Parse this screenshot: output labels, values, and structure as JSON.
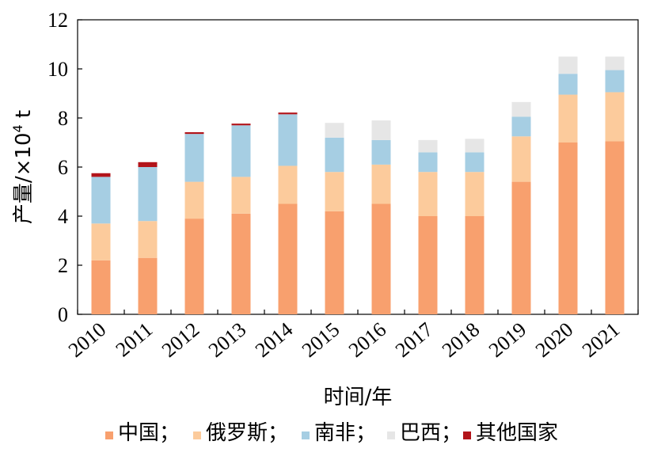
{
  "chart_data": {
    "type": "bar",
    "stacked": true,
    "title": "",
    "xlabel": "时间/年",
    "ylabel_main": "产量/×10",
    "ylabel_exp": "4",
    "ylabel_unit": " t",
    "ylim": [
      0,
      12
    ],
    "yticks": [
      "0",
      "2",
      "4",
      "6",
      "8",
      "10",
      "12"
    ],
    "categories": [
      "2010",
      "2011",
      "2012",
      "2013",
      "2014",
      "2015",
      "2016",
      "2017",
      "2018",
      "2019",
      "2020",
      "2021"
    ],
    "series": [
      {
        "name": "中国",
        "legend_label": "中国；",
        "color": "#F8A06E",
        "values": [
          2.2,
          2.3,
          3.9,
          4.1,
          4.5,
          4.2,
          4.5,
          4.0,
          4.0,
          5.4,
          7.0,
          7.05
        ]
      },
      {
        "name": "俄罗斯",
        "legend_label": "俄罗斯；",
        "color": "#FCCB9C",
        "values": [
          1.5,
          1.5,
          1.5,
          1.5,
          1.55,
          1.6,
          1.6,
          1.8,
          1.8,
          1.85,
          1.95,
          2.0
        ]
      },
      {
        "name": "南非",
        "legend_label": "南非；",
        "color": "#A6CEE3",
        "values": [
          1.9,
          2.2,
          1.95,
          2.1,
          2.1,
          1.4,
          1.0,
          0.8,
          0.8,
          0.8,
          0.85,
          0.9
        ]
      },
      {
        "name": "巴西",
        "legend_label": "巴西；",
        "color": "#E6E6E6",
        "values": [
          0,
          0,
          0,
          0,
          0,
          0.6,
          0.8,
          0.5,
          0.55,
          0.6,
          0.7,
          0.55
        ]
      },
      {
        "name": "其他国家",
        "legend_label": "其他国家",
        "color": "#B2141A",
        "values": [
          0.15,
          0.2,
          0.07,
          0.07,
          0.07,
          0,
          0,
          0,
          0,
          0,
          0,
          0
        ]
      }
    ],
    "legend_position": "bottom",
    "grid": false
  }
}
